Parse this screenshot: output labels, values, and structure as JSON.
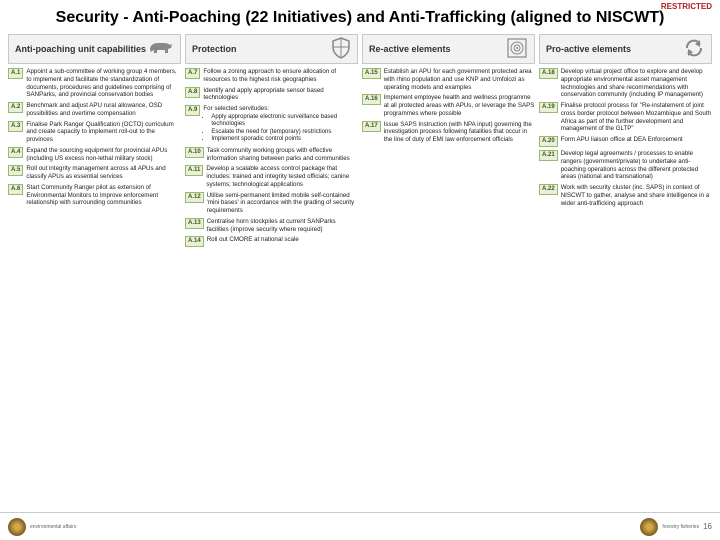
{
  "restricted": "RESTRICTED",
  "title": "Security - Anti-Poaching (22 Initiatives) and Anti-Trafficking (aligned to NISCWT)",
  "columns": [
    {
      "header": "Anti-poaching unit capabilities",
      "icon": "rhino",
      "items": [
        {
          "badge": "A.1",
          "text": "Appoint a sub-committee of working group 4 members, to implement and facilitate the standardization of documents, procedures and guidelines comprising of SANParks, and provincial conservation bodies"
        },
        {
          "badge": "A.2",
          "text": "Benchmark and adjust APU rural allowance, OSD possibilities and overtime compensation"
        },
        {
          "badge": "A.3",
          "text": "Finalise Park Ranger Qualification (OCTO) curriculum and create capacity to implement roll-out to the provinces"
        },
        {
          "badge": "A.4",
          "text": "Expand the sourcing equipment for provincial APUs (including US excess non-lethal military stock)"
        },
        {
          "badge": "A.5",
          "text": "Roll out integrity management across all APUs and classify APUs as essential services"
        },
        {
          "badge": "A.6",
          "text": "Start Community Ranger pilot as extension of Environmental Monitors to improve enforcement relationship with surrounding communities"
        }
      ]
    },
    {
      "header": "Protection",
      "icon": "shield",
      "items": [
        {
          "badge": "A.7",
          "text": "Follow a zoning approach to ensure allocation of resources to the highest risk geographies"
        },
        {
          "badge": "A.8",
          "text": "Identify and apply appropriate sensor based technologies"
        },
        {
          "badge": "A.9",
          "text": "For selected servitudes:",
          "bullets": [
            "Apply appropriate electronic surveillance based technologies",
            "Escalate the need for (temporary) restrictions",
            "Implement sporadic control points"
          ]
        },
        {
          "badge": "A.10",
          "text": "Task community working groups with effective information sharing between parks and communities"
        },
        {
          "badge": "A.11",
          "text": "Develop a scalable access control package that includes: trained and integrity tested officials; canine systems; technological applications"
        },
        {
          "badge": "A.12",
          "text": "Utilise semi-permanent limited mobile self-contained 'mini bases' in accordance with the grading of security requirements"
        },
        {
          "badge": "A.13",
          "text": "Centralise horn stockpiles at current SANParks facilities (improve security where required)"
        },
        {
          "badge": "A.14",
          "text": "Roll out CMORE at national scale"
        }
      ]
    },
    {
      "header": "Re-active elements",
      "icon": "target",
      "items": [
        {
          "badge": "A.15",
          "text": "Establish an APU for each government protected area with rhino population and use KNP and Umfolozi as operating models and examples"
        },
        {
          "badge": "A.16",
          "text": "Implement employee health and wellness programme at all protected areas with APUs, or leverage the SAPS programmes where possible"
        },
        {
          "badge": "A.17",
          "text": "Issue SAPS Instruction (with NPA input) governing the investigation process following fatalities that occur in the line of duty of EMI law enforcement officials"
        }
      ]
    },
    {
      "header": "Pro-active elements",
      "icon": "cycle",
      "items": [
        {
          "badge": "A.18",
          "text": "Develop virtual project office to explore and develop appropriate environmental asset management technologies and share recommendations with conservation community (including IP management)"
        },
        {
          "badge": "A.19",
          "text": "Finalise protocol process for \"Re-instatement of joint cross border protocol between Mozambique and South Africa as part of the further development and management of the GLTP\""
        },
        {
          "badge": "A.20",
          "text": "Form APU liaison office at DEA Enforcement"
        },
        {
          "badge": "A.21",
          "text": "Develop legal agreements / processes to enable rangers (government/private) to undertake anti-poaching operations across the different protected areas (national and transnational)"
        },
        {
          "badge": "A.22",
          "text": "Work with security cluster (inc. SAPS) in context of NISCWT to gather, analyse and share intelligence in a wider anti-trafficking approach"
        }
      ]
    }
  ],
  "footer": {
    "left_dept": "environmental affairs",
    "right_dept": "forestry fisheries",
    "page": "16"
  }
}
